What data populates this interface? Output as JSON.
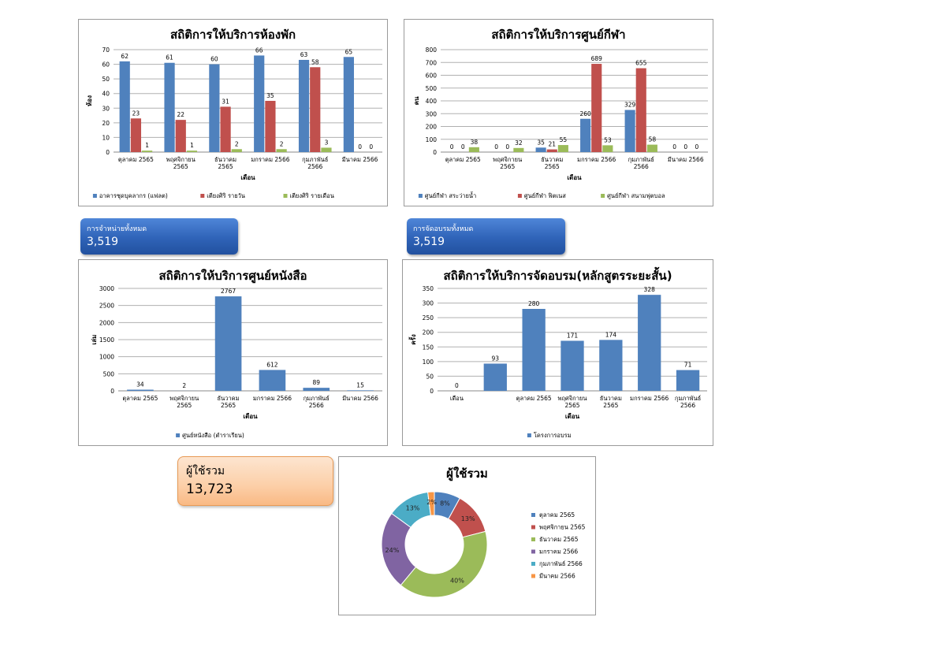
{
  "colors": {
    "blue": "#4f81bd",
    "red": "#c0504d",
    "green": "#9bbb59",
    "purple": "#8064a2",
    "teal": "#4bacc6",
    "orange": "#f79646",
    "grid": "#b0b0b0"
  },
  "kpis": {
    "sales": {
      "label": "การจำหน่ายทั้งหมด",
      "value": "3,519"
    },
    "training": {
      "label": "การจัดอบรมทั้งหมด",
      "value": "3,519"
    },
    "users": {
      "label": "ผู้ใช้รวม",
      "value": "13,723"
    }
  },
  "chart_data": [
    {
      "id": "rooms",
      "type": "bar",
      "title": "สถิติการให้บริการห้องพัก",
      "xlabel": "เดือน",
      "ylabel": "ห้อง",
      "ylim": [
        0,
        70
      ],
      "yticks": [
        0,
        10,
        20,
        30,
        40,
        50,
        60,
        70
      ],
      "categories": [
        "ตุลาคม 2565",
        "พฤศจิกายน 2565",
        "ธันวาคม 2565",
        "มกราคม 2566",
        "กุมภาพันธ์ 2566",
        "มีนาคม 2566"
      ],
      "series": [
        {
          "name": "อาคารชุดบุคลากร (แฟลต)",
          "color": "#4f81bd",
          "values": [
            62,
            61,
            60,
            66,
            63,
            65
          ]
        },
        {
          "name": "เตียงศิริ รายวัน",
          "color": "#c0504d",
          "values": [
            23,
            22,
            31,
            35,
            58,
            0
          ]
        },
        {
          "name": "เตียงศิริ รายเดือน",
          "color": "#9bbb59",
          "values": [
            1,
            1,
            2,
            2,
            3,
            0
          ]
        }
      ],
      "grid": true,
      "legend": "bottom"
    },
    {
      "id": "sports",
      "type": "bar",
      "title": "สถิติการให้บริการศูนย์กีฬา",
      "xlabel": "เดือน",
      "ylabel": "คน",
      "ylim": [
        0,
        800
      ],
      "yticks": [
        0,
        100,
        200,
        300,
        400,
        500,
        600,
        700,
        800
      ],
      "categories": [
        "ตุลาคม 2565",
        "พฤศจิกายน 2565",
        "ธันวาคม 2565",
        "มกราคม 2566",
        "กุมภาพันธ์ 2566",
        "มีนาคม 2566"
      ],
      "series": [
        {
          "name": "ศูนย์กีฬา สระว่ายน้ำ",
          "color": "#4f81bd",
          "values": [
            0,
            0,
            35,
            260,
            329,
            0
          ]
        },
        {
          "name": "ศูนย์กีฬา ฟิตเนส",
          "color": "#c0504d",
          "values": [
            0,
            0,
            21,
            689,
            655,
            0
          ]
        },
        {
          "name": "ศูนย์กีฬา สนามฟุตบอล",
          "color": "#9bbb59",
          "values": [
            38,
            32,
            55,
            53,
            58,
            0
          ]
        }
      ],
      "grid": true,
      "legend": "bottom"
    },
    {
      "id": "books",
      "type": "bar",
      "title": "สถิติการให้บริการศูนย์หนังสือ",
      "xlabel": "เดือน",
      "ylabel": "เล่ม",
      "ylim": [
        0,
        3000
      ],
      "yticks": [
        0,
        500,
        1000,
        1500,
        2000,
        2500,
        3000
      ],
      "categories": [
        "ตุลาคม 2565",
        "พฤศจิกายน 2565",
        "ธันวาคม 2565",
        "มกราคม 2566",
        "กุมภาพันธ์ 2566",
        "มีนาคม 2566"
      ],
      "series": [
        {
          "name": "ศูนย์หนังสือ (ตำราเรียน)",
          "color": "#4f81bd",
          "values": [
            34,
            2,
            2767,
            612,
            89,
            15
          ]
        }
      ],
      "grid": true,
      "legend": "bottom"
    },
    {
      "id": "training",
      "type": "bar",
      "title": "สถิติการให้บริการจัดอบรม(หลักสูตรระยะสั้น)",
      "xlabel": "เดือน",
      "ylabel": "ครั้ง",
      "ylim": [
        0,
        350
      ],
      "yticks": [
        0,
        50,
        100,
        150,
        200,
        250,
        300,
        350
      ],
      "categories": [
        "เดือน",
        "",
        "ตุลาคม 2565",
        "พฤศจิกายน 2565",
        "ธันวาคม 2565",
        "มกราคม 2566",
        "กุมภาพันธ์ 2566"
      ],
      "series": [
        {
          "name": "โครงการอบรม",
          "color": "#4f81bd",
          "values": [
            0,
            93,
            280,
            171,
            174,
            328,
            71
          ]
        }
      ],
      "grid": true,
      "legend": "bottom"
    },
    {
      "id": "users",
      "type": "pie",
      "title": "ผู้ใช้รวม",
      "categories": [
        "ตุลาคม 2565",
        "พฤศจิกายน 2565",
        "ธันวาคม 2565",
        "มกราคม 2566",
        "กุมภาพันธ์ 2566",
        "มีนาคม 2566"
      ],
      "values": [
        8,
        13,
        40,
        24,
        13,
        2
      ],
      "labels": [
        "8%",
        "13%",
        "40%",
        "24%",
        "13%",
        "2%"
      ],
      "colors": [
        "#4f81bd",
        "#c0504d",
        "#9bbb59",
        "#8064a2",
        "#4bacc6",
        "#f79646"
      ],
      "legend": "right",
      "donut": true
    }
  ]
}
